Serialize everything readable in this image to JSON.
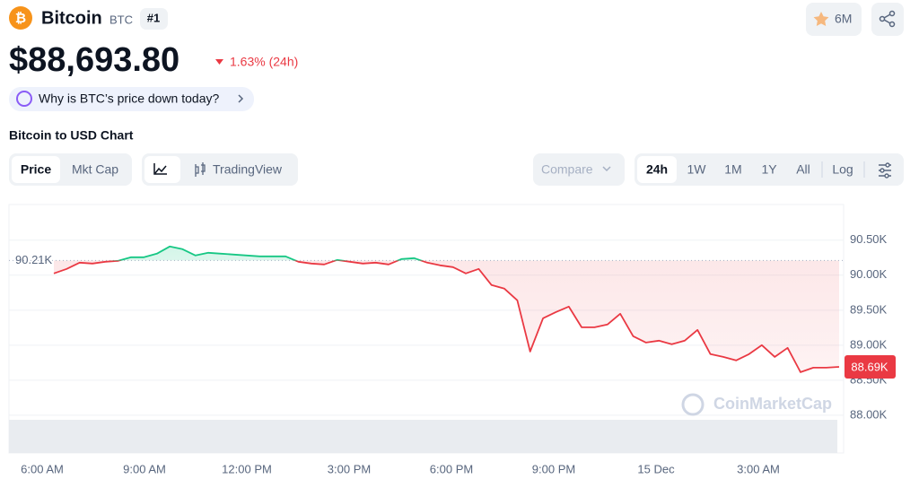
{
  "header": {
    "name": "Bitcoin",
    "symbol": "BTC",
    "rank": "#1",
    "watchlist_count": "6M"
  },
  "price": "$88,693.80",
  "change": "1.63% (24h)",
  "ai_prompt": "Why is BTC’s price down today?",
  "chart_section": {
    "title": "Bitcoin to USD Chart",
    "view_tabs": [
      "Price",
      "Mkt Cap"
    ],
    "tool": "TradingView",
    "compare": "Compare",
    "ranges": [
      "24h",
      "1W",
      "1M",
      "1Y",
      "All"
    ],
    "scale": "Log"
  },
  "chart_data": {
    "type": "line",
    "values": [
      90026,
      90090,
      90179,
      90167,
      90192,
      90205,
      90256,
      90256,
      90308,
      90410,
      90372,
      90282,
      90321,
      90308,
      90295,
      90282,
      90269,
      90269,
      90269,
      90192,
      90167,
      90154,
      90218,
      90192,
      90167,
      90179,
      90154,
      90231,
      90244,
      90179,
      90141,
      90115,
      90026,
      90090,
      89859,
      89808,
      89641,
      88910,
      89385,
      89474,
      89551,
      89256,
      89256,
      89295,
      89449,
      89128,
      89038,
      89064,
      89013,
      89064,
      89218,
      88872,
      88833,
      88782,
      88872,
      89000,
      88833,
      88962,
      88615,
      88679,
      88679,
      88690
    ],
    "x_labels": [
      "6:00 AM",
      "9:00 AM",
      "12:00 PM",
      "3:00 PM",
      "6:00 PM",
      "9:00 PM",
      "15 Dec",
      "3:00 AM"
    ],
    "ylim": [
      87460,
      91010
    ],
    "yticks": [
      {
        "value": 88000,
        "label": "88.00K"
      },
      {
        "value": 88500,
        "label": "88.50K"
      },
      {
        "value": 89000,
        "label": "89.00K"
      },
      {
        "value": 89500,
        "label": "89.50K"
      },
      {
        "value": 90000,
        "label": "90.00K"
      },
      {
        "value": 90500,
        "label": "90.50K"
      }
    ],
    "reference": {
      "value": 90210,
      "label": "90.21K"
    },
    "current": {
      "value": 88690,
      "label": "88.69K"
    },
    "colors": {
      "up": "#16c784",
      "down": "#ea3943"
    },
    "grid": true,
    "watermark": "CoinMarketCap"
  }
}
